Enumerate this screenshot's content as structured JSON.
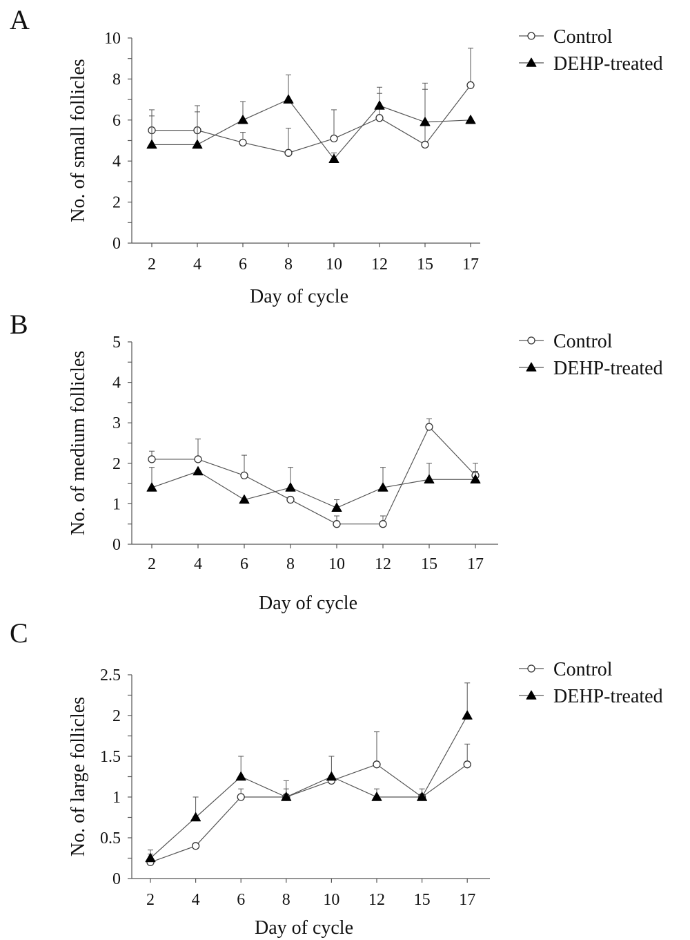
{
  "chart_data": [
    {
      "type": "line",
      "panel_label": "A",
      "categories": [
        "2",
        "4",
        "6",
        "8",
        "10",
        "12",
        "15",
        "17"
      ],
      "xlabel": "Day of cycle",
      "ylabel": "No. of small follicles",
      "ylim": [
        0,
        10
      ],
      "yticks": [
        "0",
        "2",
        "4",
        "6",
        "8",
        "10"
      ],
      "legend": "top-right",
      "grid": false,
      "error_bars": "upper",
      "series": [
        {
          "name": "Control",
          "marker": "open-circle",
          "values": [
            5.5,
            5.5,
            4.9,
            4.4,
            5.1,
            6.1,
            4.8,
            7.7
          ],
          "errors": [
            1.0,
            1.2,
            0.5,
            1.2,
            1.4,
            1.2,
            3.0,
            1.8
          ]
        },
        {
          "name": "DEHP-treated",
          "marker": "filled-triangle",
          "values": [
            4.8,
            4.8,
            6.0,
            7.0,
            4.1,
            6.7,
            5.9,
            6.0
          ],
          "errors": [
            1.4,
            1.6,
            0.9,
            1.2,
            0.3,
            0.9,
            1.6,
            0.0
          ]
        }
      ]
    },
    {
      "type": "line",
      "panel_label": "B",
      "categories": [
        "2",
        "4",
        "6",
        "8",
        "10",
        "12",
        "15",
        "17"
      ],
      "xlabel": "Day of cycle",
      "ylabel": "No. of medium follicles",
      "ylim": [
        0,
        5
      ],
      "yticks": [
        "0",
        "1",
        "2",
        "3",
        "4",
        "5"
      ],
      "legend": "top-right",
      "grid": false,
      "error_bars": "upper",
      "series": [
        {
          "name": "Control",
          "marker": "open-circle",
          "values": [
            2.1,
            2.1,
            1.7,
            1.1,
            0.5,
            0.5,
            2.9,
            1.7
          ],
          "errors": [
            0.2,
            0.5,
            0.5,
            0.0,
            0.2,
            0.2,
            0.2,
            0.3
          ]
        },
        {
          "name": "DEHP-treated",
          "marker": "filled-triangle",
          "values": [
            1.4,
            1.8,
            1.1,
            1.4,
            0.9,
            1.4,
            1.6,
            1.6
          ],
          "errors": [
            0.5,
            0.0,
            0.0,
            0.5,
            0.2,
            0.5,
            0.4,
            0.2
          ]
        }
      ]
    },
    {
      "type": "line",
      "panel_label": "C",
      "categories": [
        "2",
        "4",
        "6",
        "8",
        "10",
        "12",
        "15",
        "17"
      ],
      "xlabel": "Day of cycle",
      "ylabel": "No. of large follicles",
      "ylim": [
        0,
        2.5
      ],
      "yticks": [
        "0",
        "0.5",
        "1",
        "1.5",
        "2",
        "2.5"
      ],
      "legend": "top-right",
      "grid": false,
      "error_bars": "upper",
      "series": [
        {
          "name": "Control",
          "marker": "open-circle",
          "values": [
            0.2,
            0.4,
            1.0,
            1.0,
            1.2,
            1.4,
            1.0,
            1.4
          ],
          "errors": [
            0.1,
            0.0,
            0.1,
            0.2,
            0.0,
            0.4,
            0.1,
            0.25
          ]
        },
        {
          "name": "DEHP-treated",
          "marker": "filled-triangle",
          "values": [
            0.25,
            0.75,
            1.25,
            1.0,
            1.25,
            1.0,
            1.0,
            2.0
          ],
          "errors": [
            0.1,
            0.25,
            0.25,
            0.1,
            0.25,
            0.1,
            0.0,
            0.4
          ]
        }
      ]
    }
  ]
}
